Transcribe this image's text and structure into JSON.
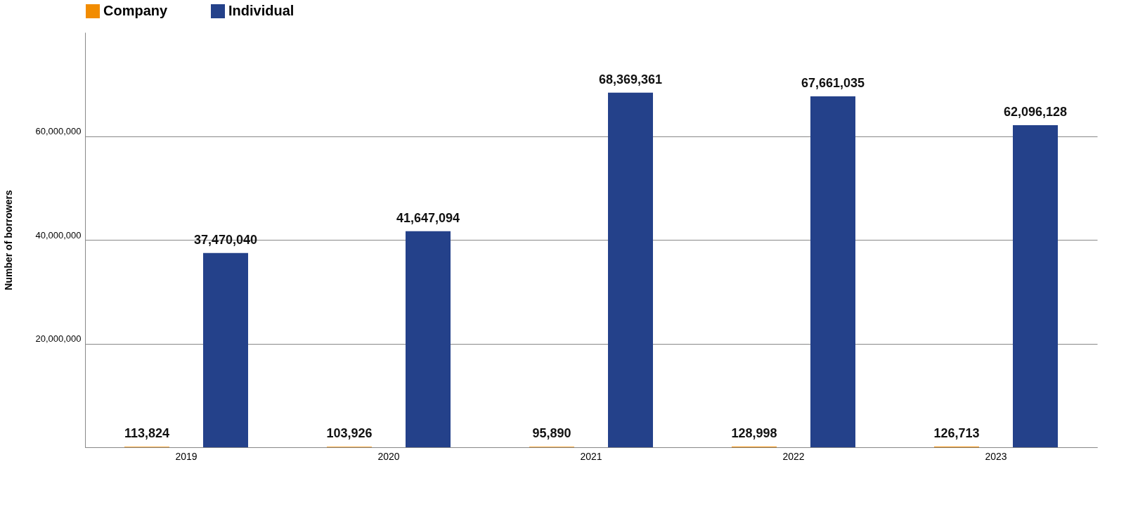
{
  "chart_data": {
    "type": "bar",
    "ylabel": "Number of borrowers",
    "categories": [
      "2019",
      "2020",
      "2021",
      "2022",
      "2023"
    ],
    "series": [
      {
        "name": "Company",
        "color": "#f28c00",
        "values": [
          113824,
          103926,
          95890,
          128998,
          126713
        ],
        "value_labels": [
          "113,824",
          "103,926",
          "95,890",
          "128,998",
          "126,713"
        ]
      },
      {
        "name": "Individual",
        "color": "#24418a",
        "values": [
          37470040,
          41647094,
          68369361,
          67661035,
          62096128
        ],
        "value_labels": [
          "37,470,040",
          "41,647,094",
          "68,369,361",
          "67,661,035",
          "62,096,128"
        ]
      }
    ],
    "ylim": [
      0,
      80000000
    ],
    "yticks": [
      {
        "value": 0,
        "label": null
      },
      {
        "value": 20000000,
        "label": "20,000,000"
      },
      {
        "value": 40000000,
        "label": "40,000,000"
      },
      {
        "value": 60000000,
        "label": "60,000,000"
      }
    ],
    "grid": "y",
    "legend": "top left"
  }
}
